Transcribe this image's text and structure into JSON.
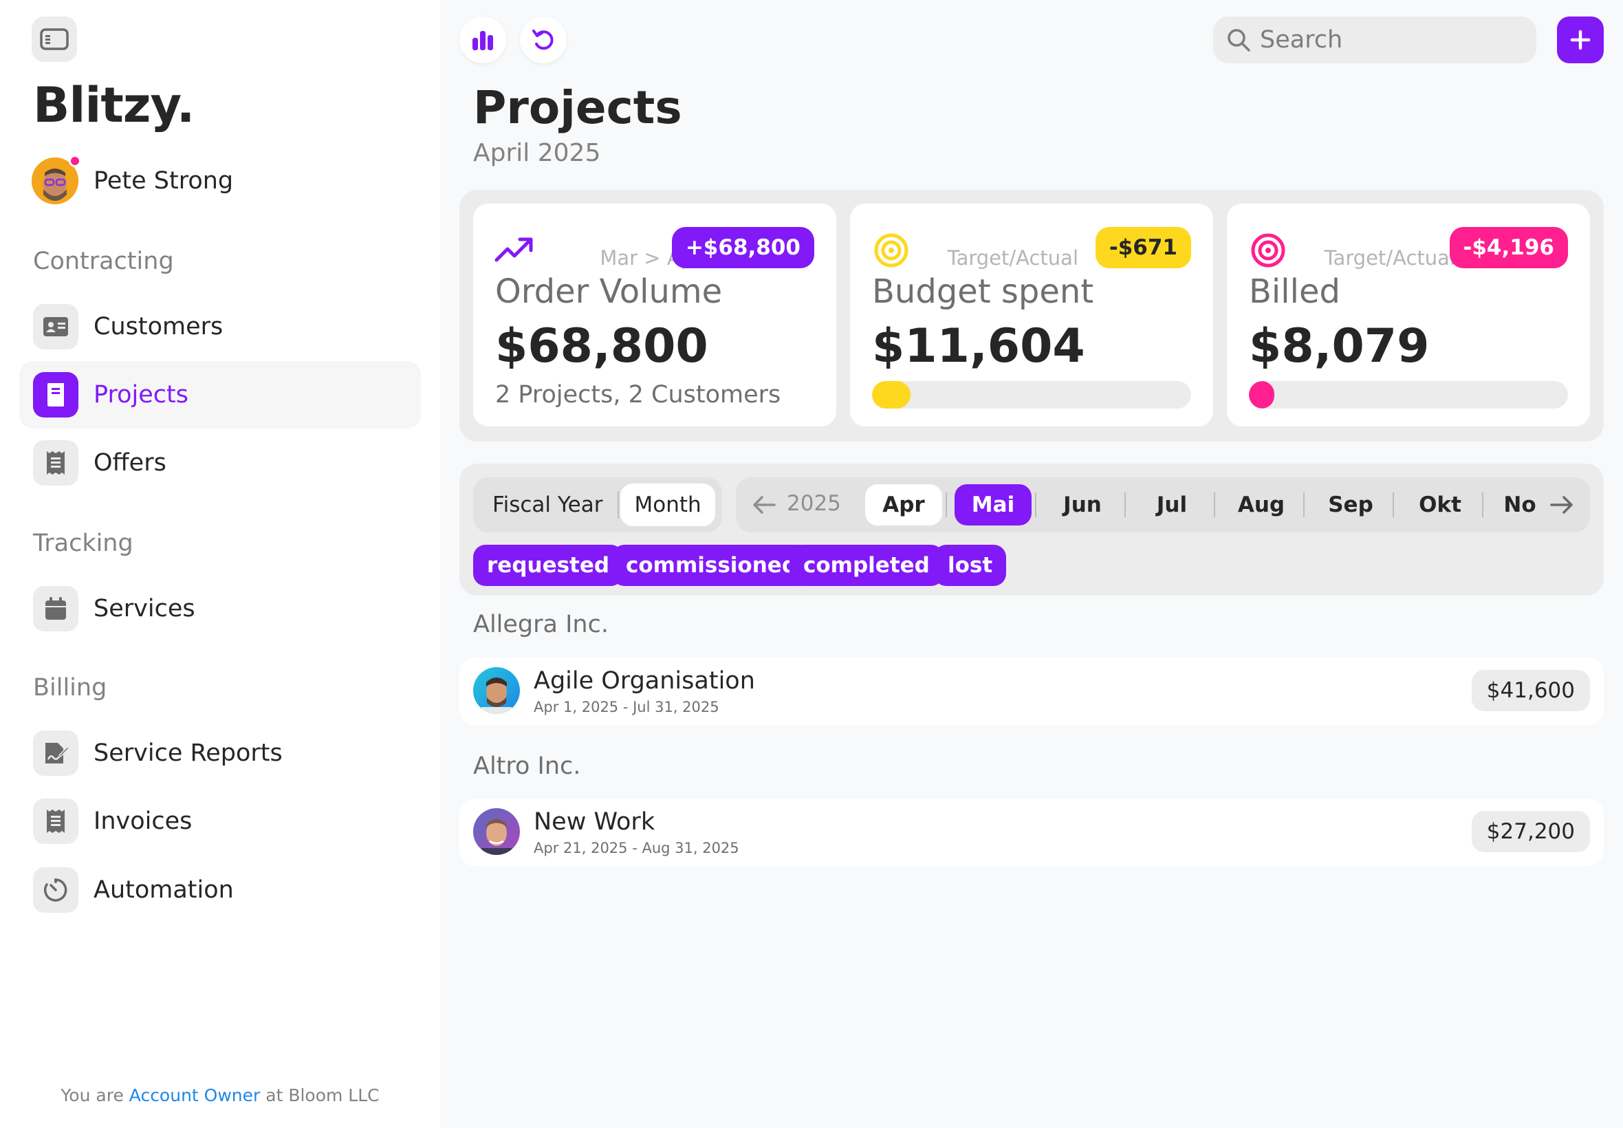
{
  "app": {
    "brand": "Blitzy."
  },
  "user": {
    "name": "Pete Strong"
  },
  "sidebar": {
    "sections": [
      {
        "title": "Contracting",
        "items": [
          {
            "label": "Customers",
            "icon": "id-card-icon"
          },
          {
            "label": "Projects",
            "icon": "book-icon",
            "active": true
          },
          {
            "label": "Offers",
            "icon": "receipt-icon"
          }
        ]
      },
      {
        "title": "Tracking",
        "items": [
          {
            "label": "Services",
            "icon": "calendar-icon"
          }
        ]
      },
      {
        "title": "Billing",
        "items": [
          {
            "label": "Service Reports",
            "icon": "signature-icon"
          },
          {
            "label": "Invoices",
            "icon": "receipt-icon"
          },
          {
            "label": "Automation",
            "icon": "timer-icon"
          }
        ]
      }
    ],
    "footer": {
      "prefix": "You are ",
      "role": "Account Owner",
      "suffix": " at Bloom LLC"
    }
  },
  "toolbar": {
    "search_placeholder": "Search"
  },
  "page": {
    "title": "Projects",
    "subtitle": "April 2025"
  },
  "kpis": [
    {
      "icon": "trending-up-icon",
      "meta": "Mar > Apr",
      "badge": "+$68,800",
      "title": "Order Volume",
      "value": "$68,800",
      "footnote": "2 Projects, 2 Customers"
    },
    {
      "icon": "target-icon",
      "meta": "Target/Actual",
      "badge": "-$671",
      "title": "Budget spent",
      "value": "$11,604",
      "progress": 0.12
    },
    {
      "icon": "target-icon",
      "meta": "Target/Actual",
      "badge": "-$4,196",
      "title": "Billed",
      "value": "$8,079",
      "progress": 0.08
    }
  ],
  "colors": {
    "accent": "#8219f7",
    "yellow": "#fdd81e",
    "pink": "#ff1f8f"
  },
  "filters": {
    "period_options": [
      "Fiscal Year",
      "Month"
    ],
    "period_selected": "Month",
    "year": "2025",
    "months": [
      "Apr",
      "Mai",
      "Jun",
      "Jul",
      "Aug",
      "Sep",
      "Okt",
      "No"
    ],
    "current_month": "Apr",
    "selected_month": "Mai",
    "statuses": [
      "requested",
      "commissioned",
      "completed",
      "lost"
    ]
  },
  "groups": [
    {
      "customer": "Allegra Inc.",
      "projects": [
        {
          "name": "Agile Organisation",
          "dates": "Apr 1, 2025 - Jul 31, 2025",
          "amount": "$41,600"
        }
      ]
    },
    {
      "customer": "Altro Inc.",
      "projects": [
        {
          "name": "New Work",
          "dates": "Apr 21, 2025 - Aug 31, 2025",
          "amount": "$27,200"
        }
      ]
    }
  ]
}
